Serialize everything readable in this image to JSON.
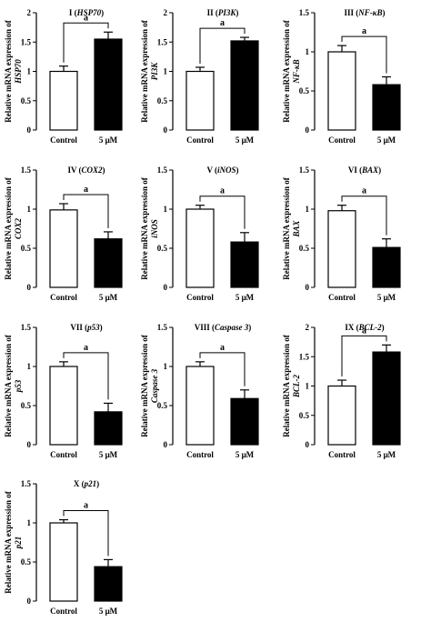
{
  "chart_data": [
    {
      "type": "bar",
      "title": "I (HSP70)",
      "title_prefix": "I (",
      "title_gene": "HSP70",
      "title_suffix": ")",
      "ylabel_line1": "Relative mRNA expression of",
      "ylabel_gene": "HSP70",
      "categories": [
        "Control",
        "5 μM"
      ],
      "values": [
        1.0,
        1.55
      ],
      "errors": [
        0.09,
        0.12
      ],
      "ylim": [
        0,
        2
      ],
      "yticks": [
        "0",
        "0.5",
        "1",
        "1.5",
        "2"
      ],
      "colors": [
        "#ffffff",
        "#000000"
      ],
      "significance": "a"
    },
    {
      "type": "bar",
      "title": "II (PI3K)",
      "title_prefix": "II (",
      "title_gene": "PI3K",
      "title_suffix": ")",
      "ylabel_line1": "Relative mRNA expression of",
      "ylabel_gene": "PI3K",
      "categories": [
        "Control",
        "5 μM"
      ],
      "values": [
        1.0,
        1.52
      ],
      "errors": [
        0.07,
        0.06
      ],
      "ylim": [
        0,
        2
      ],
      "yticks": [
        "0",
        "0.5",
        "1",
        "1.5",
        "2"
      ],
      "colors": [
        "#ffffff",
        "#000000"
      ],
      "significance": "a"
    },
    {
      "type": "bar",
      "title": "III (NF-κB)",
      "title_prefix": "III (",
      "title_gene": "NF-κB",
      "title_suffix": ")",
      "ylabel_line1": "Relative mRNA expression of",
      "ylabel_gene": "NF-κB",
      "categories": [
        "Control",
        "5 μM"
      ],
      "values": [
        1.0,
        0.58
      ],
      "errors": [
        0.08,
        0.1
      ],
      "ylim": [
        0,
        1.5
      ],
      "yticks": [
        "0",
        "0.5",
        "1",
        "1.5"
      ],
      "colors": [
        "#ffffff",
        "#000000"
      ],
      "significance": "a"
    },
    {
      "type": "bar",
      "title": "IV (COX2)",
      "title_prefix": "IV (",
      "title_gene": "COX2",
      "title_suffix": ")",
      "ylabel_line1": "Relative mRNA expression of",
      "ylabel_gene": "COX2",
      "categories": [
        "Control",
        "5 μM"
      ],
      "values": [
        0.99,
        0.62
      ],
      "errors": [
        0.08,
        0.09
      ],
      "ylim": [
        0,
        1.5
      ],
      "yticks": [
        "0",
        "0.5",
        "1",
        "1.5"
      ],
      "colors": [
        "#ffffff",
        "#000000"
      ],
      "significance": "a"
    },
    {
      "type": "bar",
      "title": "V (iNOS)",
      "title_prefix": "V (",
      "title_gene": "iNOS",
      "title_suffix": ")",
      "ylabel_line1": "Relative mRNA expression of",
      "ylabel_gene": "iNOS",
      "categories": [
        "Control",
        "5 μM"
      ],
      "values": [
        1.0,
        0.58
      ],
      "errors": [
        0.05,
        0.12
      ],
      "ylim": [
        0,
        1.5
      ],
      "yticks": [
        "0",
        "0.5",
        "1",
        "1.5"
      ],
      "colors": [
        "#ffffff",
        "#000000"
      ],
      "significance": "a"
    },
    {
      "type": "bar",
      "title": "VI (BAX)",
      "title_prefix": "VI (",
      "title_gene": "BAX",
      "title_suffix": ")",
      "ylabel_line1": "Relative mRNA expression of",
      "ylabel_gene": "BAX",
      "categories": [
        "Control",
        "5 μM"
      ],
      "values": [
        0.98,
        0.51
      ],
      "errors": [
        0.07,
        0.11
      ],
      "ylim": [
        0,
        1.5
      ],
      "yticks": [
        "0",
        "0.5",
        "1",
        "1.5"
      ],
      "colors": [
        "#ffffff",
        "#000000"
      ],
      "significance": "a"
    },
    {
      "type": "bar",
      "title": "VII (p53)",
      "title_prefix": "VII (",
      "title_gene": "p53",
      "title_suffix": ")",
      "ylabel_line1": "Relative mRNA expression of",
      "ylabel_gene": "p53",
      "categories": [
        "Control",
        "5 μM"
      ],
      "values": [
        1.0,
        0.42
      ],
      "errors": [
        0.06,
        0.11
      ],
      "ylim": [
        0,
        1.5
      ],
      "yticks": [
        "0",
        "0.5",
        "1",
        "1.5"
      ],
      "colors": [
        "#ffffff",
        "#000000"
      ],
      "significance": "a"
    },
    {
      "type": "bar",
      "title": "VIII (Caspase 3)",
      "title_prefix": "VIII (",
      "title_gene": "Caspase 3",
      "title_suffix": ")",
      "ylabel_line1": "Relative mRNA expression of",
      "ylabel_gene": "Caspase 3",
      "categories": [
        "Control",
        "5 μM"
      ],
      "values": [
        1.0,
        0.59
      ],
      "errors": [
        0.06,
        0.11
      ],
      "ylim": [
        0,
        1.5
      ],
      "yticks": [
        "0",
        "0.5",
        "1",
        "1.5"
      ],
      "colors": [
        "#ffffff",
        "#000000"
      ],
      "significance": "a"
    },
    {
      "type": "bar",
      "title": "IX (BCL-2)",
      "title_prefix": "IX (",
      "title_gene": "BCL-2",
      "title_suffix": ")",
      "ylabel_line1": "Relative mRNA expression of",
      "ylabel_gene": "BCL-2",
      "categories": [
        "Control",
        "5 μM"
      ],
      "values": [
        1.0,
        1.58
      ],
      "errors": [
        0.1,
        0.12
      ],
      "ylim": [
        0,
        2
      ],
      "yticks": [
        "0",
        "0.5",
        "1",
        "1.5",
        "2"
      ],
      "colors": [
        "#ffffff",
        "#000000"
      ],
      "significance": "a"
    },
    {
      "type": "bar",
      "title": "X (p21)",
      "title_prefix": "X (",
      "title_gene": "p21",
      "title_suffix": ")",
      "ylabel_line1": "Relative mRNA expression of",
      "ylabel_gene": "p21",
      "categories": [
        "Control",
        "5 μM"
      ],
      "values": [
        1.0,
        0.44
      ],
      "errors": [
        0.04,
        0.09
      ],
      "ylim": [
        0,
        1.5
      ],
      "yticks": [
        "0",
        "0.5",
        "1",
        "1.5"
      ],
      "colors": [
        "#ffffff",
        "#000000"
      ],
      "significance": "a"
    }
  ]
}
